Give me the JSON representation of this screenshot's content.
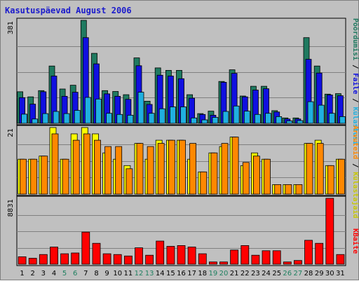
{
  "chart_data": {
    "type": "bar",
    "title": "Kasutuspäevad August 2006",
    "categories": [
      "1",
      "2",
      "3",
      "4",
      "5",
      "6",
      "7",
      "8",
      "9",
      "10",
      "11",
      "12",
      "13",
      "14",
      "15",
      "16",
      "17",
      "18",
      "19",
      "20",
      "21",
      "22",
      "23",
      "24",
      "25",
      "26",
      "27",
      "28",
      "29",
      "30",
      "31"
    ],
    "weekend_days": [
      "5",
      "6",
      "12",
      "13",
      "19",
      "20",
      "26",
      "27"
    ],
    "colors": {
      "title": "#1c1ccc",
      "weekend_label": "#1f8060",
      "weekday_label": "#000000",
      "visits": "#1f7a60",
      "pages": "#1010e0",
      "files": "#20b0e0",
      "hits": "#ffff00",
      "visitors": "#ff8800",
      "kbytes": "#ff0000",
      "background": "#c0c0c0",
      "gridline": "#808080"
    },
    "panels": [
      {
        "ymax_label": "381",
        "ymax": 381,
        "series": [
          {
            "name": "Pöördumisi",
            "color": "#1f7a60",
            "values": [
              117,
              98,
              121,
              212,
              127,
              141,
              381,
              259,
              121,
              118,
              106,
              242,
              82,
              205,
              196,
              196,
              106,
              36,
              45,
              155,
              198,
              101,
              137,
              137,
              47,
              20,
              20,
              317,
              212,
              108,
              110
            ]
          },
          {
            "name": "Faile",
            "color": "#1010e0",
            "values": [
              95,
              71,
              117,
              175,
              100,
              115,
              317,
              220,
              109,
              100,
              89,
              213,
              70,
              178,
              175,
              165,
              93,
              33,
              30,
              152,
              185,
              98,
              123,
              128,
              42,
              16,
              16,
              237,
              186,
              105,
              102
            ]
          },
          {
            "name": "Külastusi",
            "color": "#20b0e0",
            "values": [
              34,
              16,
              36,
              44,
              36,
              48,
              96,
              90,
              37,
              33,
              30,
              115,
              37,
              54,
              61,
              61,
              20,
              13,
              22,
              44,
              64,
              45,
              33,
              37,
              25,
              9,
              10,
              80,
              67,
              37,
              25
            ]
          }
        ]
      },
      {
        "ymax_label": "21",
        "ymax": 21,
        "series": [
          {
            "name": "Külastajaid",
            "color": "#ffff00",
            "values": [
              11,
              11,
              12,
              21,
              11,
              19,
              21,
              19,
              13,
              11,
              9,
              16,
              11,
              17,
              17,
              17,
              11,
              7,
              13,
              15,
              18,
              9,
              13,
              11,
              3,
              3,
              3,
              16,
              17,
              9,
              11
            ]
          },
          {
            "name": "Arvuteid",
            "color": "#ff8800",
            "values": [
              11,
              11,
              12,
              19,
              11,
              17,
              19,
              17,
              15,
              15,
              8,
              16,
              15,
              16,
              17,
              17,
              16,
              7,
              13,
              16,
              18,
              10,
              12,
              11,
              3,
              3,
              3,
              16,
              16,
              9,
              11
            ]
          }
        ]
      },
      {
        "ymax_label": "8831",
        "ymax": 8831,
        "series": [
          {
            "name": "KBaite",
            "color": "#ff0000",
            "values": [
              1000,
              800,
              1300,
              2300,
              1400,
              1500,
              4300,
              2800,
              1400,
              1300,
              1100,
              2200,
              1200,
              3100,
              2400,
              2500,
              2300,
              1400,
              300,
              300,
              1900,
              2500,
              1200,
              1800,
              1800,
              300,
              500,
              3200,
              2800,
              8831,
              1300
            ]
          }
        ]
      }
    ],
    "side_labels": {
      "top": [
        {
          "text": "Pöördumisi",
          "color": "#1f7a60"
        },
        {
          "text": " / ",
          "color": "#000000"
        },
        {
          "text": "Faile",
          "color": "#1010e0"
        },
        {
          "text": " / ",
          "color": "#000000"
        },
        {
          "text": "Külastusi",
          "color": "#20b0e0"
        }
      ],
      "middle": [
        {
          "text": "Arvuteid",
          "color": "#ff8800"
        },
        {
          "text": " / ",
          "color": "#000000"
        },
        {
          "text": "Külastajaid",
          "color": "#c8c800"
        }
      ],
      "bottom": [
        {
          "text": "KBaite",
          "color": "#ff0000"
        }
      ]
    }
  }
}
